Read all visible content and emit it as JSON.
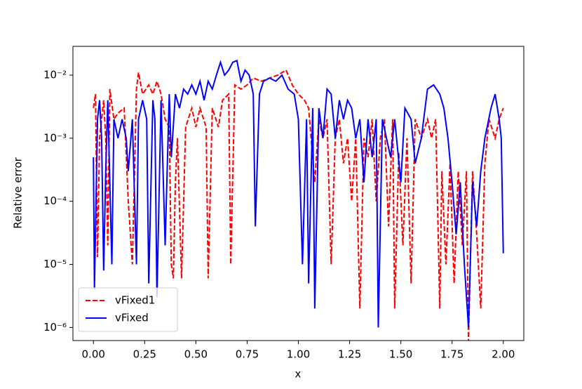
{
  "chart_data": {
    "type": "line",
    "x_label": "x",
    "y_label": "Relative error",
    "y_scale": "log",
    "grid": false,
    "legend": "lower left",
    "xlim": [
      -0.1,
      2.1
    ],
    "ylim": [
      6.2e-07,
      0.0286
    ],
    "xticks": [
      {
        "value": 0,
        "label": "0.00"
      },
      0.25,
      {
        "value": 0.5,
        "label": "0.50"
      },
      0.75,
      {
        "value": 1,
        "label": "1.00"
      },
      1.25,
      {
        "value": 1.5,
        "label": "1.50"
      },
      1.75,
      {
        "value": 2,
        "label": "2.00"
      }
    ],
    "yticks": [
      {
        "value": 1e-06,
        "label": "10⁻⁶"
      },
      {
        "value": 1e-05,
        "label": "10⁻⁵"
      },
      {
        "value": 0.0001,
        "label": "10⁻⁴"
      },
      {
        "value": 0.001,
        "label": "10⁻³"
      },
      {
        "value": 0.01,
        "label": "10⁻²"
      }
    ],
    "series": [
      {
        "name": "vFixed1",
        "color": "#ff0000",
        "dash": "dashed",
        "x": [
          0,
          0.01,
          0.02,
          0.03,
          0.05,
          0.06,
          0.07,
          0.08,
          0.1,
          0.12,
          0.15,
          0.17,
          0.19,
          0.21,
          0.22,
          0.24,
          0.27,
          0.29,
          0.31,
          0.33,
          0.35,
          0.37,
          0.38,
          0.39,
          0.4,
          0.41,
          0.43,
          0.45,
          0.48,
          0.5,
          0.52,
          0.55,
          0.56,
          0.58,
          0.61,
          0.63,
          0.66,
          0.67,
          0.69,
          0.72,
          0.75,
          0.78,
          0.82,
          0.86,
          0.9,
          0.94,
          0.97,
          1,
          1.03,
          1.05,
          1.08,
          1.1,
          1.12,
          1.14,
          1.16,
          1.18,
          1.2,
          1.22,
          1.24,
          1.26,
          1.28,
          1.3,
          1.32,
          1.34,
          1.36,
          1.38,
          1.4,
          1.42,
          1.44,
          1.46,
          1.47,
          1.49,
          1.51,
          1.53,
          1.55,
          1.57,
          1.6,
          1.63,
          1.65,
          1.67,
          1.69,
          1.7,
          1.72,
          1.74,
          1.76,
          1.78,
          1.8,
          1.82,
          1.83,
          1.85,
          1.87,
          1.89,
          1.91,
          1.93,
          1.96,
          1.98,
          2
        ],
        "values": [
          0.003,
          0.005,
          1.3e-05,
          0.001,
          0.004,
          0.001,
          2e-05,
          0.006,
          0.002,
          0.0025,
          0.003,
          0.0001,
          1e-05,
          0.006,
          0.011,
          0.005,
          0.007,
          0.005,
          0.008,
          0.005,
          0.002,
          0.0015,
          1e-05,
          6e-06,
          0.0002,
          0.001,
          6e-06,
          0.0015,
          0.003,
          0.0015,
          0.003,
          0.0015,
          6e-06,
          0.003,
          0.0015,
          0.004,
          0.005,
          1e-05,
          0.007,
          0.006,
          0.007,
          0.009,
          0.008,
          0.009,
          0.01,
          0.012,
          0.007,
          0.005,
          0.004,
          0.003,
          0.0002,
          0.002,
          0.001,
          0.002,
          1e-05,
          0.001,
          0.002,
          0.0004,
          0.001,
          0.0001,
          0.001,
          2e-06,
          0.001,
          0.0005,
          0.002,
          0.0001,
          0.001,
          0.002,
          4e-05,
          0.002,
          2e-06,
          0.0006,
          2e-05,
          0.001,
          5e-06,
          0.002,
          0.001,
          0.002,
          0.001,
          0.002,
          2e-06,
          0.0003,
          1e-05,
          0.0004,
          5e-06,
          0.0003,
          2e-05,
          0.0003,
          6e-07,
          0.0003,
          3e-05,
          2e-06,
          0.0004,
          0.002,
          0.001,
          0.002,
          0.003
        ]
      },
      {
        "name": "vFixed",
        "color": "#0000ff",
        "dash": "solid",
        "x": [
          0,
          0.005,
          0.02,
          0.03,
          0.04,
          0.05,
          0.06,
          0.07,
          0.09,
          0.1,
          0.12,
          0.14,
          0.16,
          0.17,
          0.19,
          0.21,
          0.22,
          0.24,
          0.26,
          0.27,
          0.29,
          0.3,
          0.31,
          0.33,
          0.35,
          0.37,
          0.38,
          0.4,
          0.42,
          0.44,
          0.46,
          0.48,
          0.5,
          0.52,
          0.54,
          0.56,
          0.58,
          0.6,
          0.62,
          0.64,
          0.66,
          0.68,
          0.7,
          0.72,
          0.74,
          0.76,
          0.78,
          0.79,
          0.81,
          0.83,
          0.86,
          0.89,
          0.92,
          0.95,
          0.98,
          1,
          1.02,
          1.04,
          1.05,
          1.07,
          1.08,
          1.1,
          1.12,
          1.14,
          1.16,
          1.18,
          1.2,
          1.22,
          1.24,
          1.26,
          1.28,
          1.3,
          1.32,
          1.34,
          1.36,
          1.38,
          1.39,
          1.41,
          1.43,
          1.45,
          1.47,
          1.5,
          1.52,
          1.55,
          1.57,
          1.6,
          1.63,
          1.66,
          1.69,
          1.71,
          1.73,
          1.75,
          1.77,
          1.79,
          1.81,
          1.83,
          1.85,
          1.87,
          1.89,
          1.91,
          1.94,
          1.96,
          1.98,
          1.99,
          2
        ],
        "values": [
          0.0005,
          4e-06,
          0.002,
          0.004,
          0.001,
          8e-06,
          0.0003,
          0.004,
          1e-05,
          0.002,
          0.001,
          0.002,
          0.001,
          0.0003,
          0.002,
          1e-05,
          0.002,
          0.004,
          0.002,
          5e-06,
          0.004,
          0.002,
          3e-06,
          0.004,
          2e-05,
          0.005,
          0.0005,
          0.005,
          0.003,
          0.006,
          0.005,
          0.007,
          0.005,
          0.008,
          0.004,
          0.008,
          0.006,
          0.01,
          0.016,
          0.01,
          0.012,
          0.016,
          0.017,
          0.008,
          0.012,
          0.01,
          0.005,
          4e-05,
          0.005,
          0.008,
          0.009,
          0.008,
          0.01,
          0.006,
          0.005,
          0.002,
          1e-05,
          0.002,
          5e-06,
          0.003,
          2e-06,
          0.003,
          0.001,
          0.006,
          0.005,
          0.001,
          0.004,
          0.002,
          0.004,
          0.003,
          0.001,
          0.002,
          0.0002,
          0.002,
          0.0005,
          0.002,
          1e-06,
          0.002,
          0.001,
          0.0005,
          0.002,
          0.0002,
          0.003,
          0.002,
          0.0004,
          0.001,
          0.006,
          0.007,
          0.005,
          0.003,
          0.001,
          0.0002,
          3e-05,
          0.0002,
          1e-05,
          1e-06,
          0.0002,
          4e-05,
          0.0003,
          0.001,
          0.003,
          0.005,
          0.002,
          0.001,
          1.5e-05
        ]
      }
    ]
  }
}
